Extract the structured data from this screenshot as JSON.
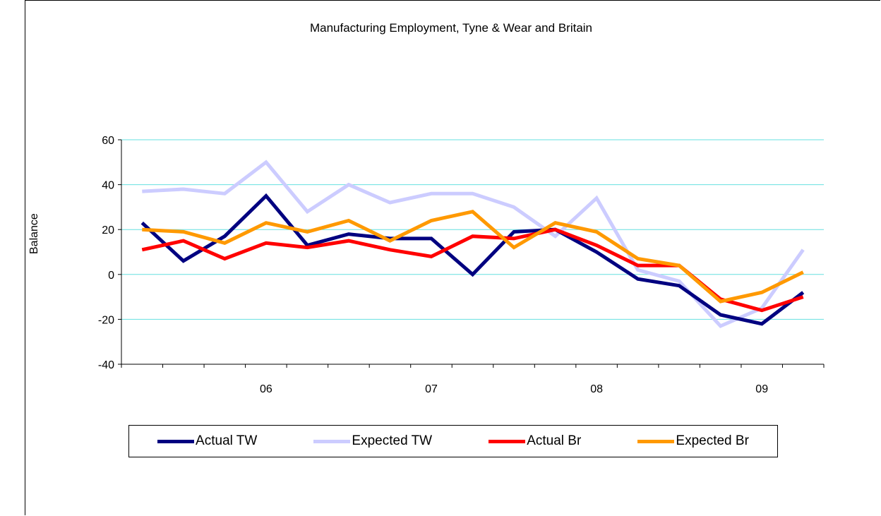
{
  "chart_data": {
    "type": "line",
    "title": "Manufacturing Employment,  Tyne & Wear and Britain",
    "ylabel": "Balance",
    "xlabel": "",
    "ylim": [
      -40,
      60
    ],
    "yticks": [
      60,
      40,
      20,
      0,
      -20,
      -40
    ],
    "xtick_labels": [
      "06",
      "07",
      "08",
      "09"
    ],
    "grid": "horizontal",
    "legend_position": "bottom",
    "series": [
      {
        "name": "Actual TW",
        "color": "#000080",
        "values": [
          23,
          6,
          17,
          35,
          13,
          18,
          16,
          16,
          0,
          19,
          20,
          10,
          -2,
          -5,
          -18,
          -22,
          -8
        ]
      },
      {
        "name": "Expected TW",
        "color": "#CCCCFF",
        "values": [
          37,
          38,
          36,
          50,
          28,
          40,
          32,
          36,
          36,
          30,
          17,
          34,
          2,
          -3,
          -23,
          -15,
          11
        ]
      },
      {
        "name": "Actual Br",
        "color": "#FF0000",
        "values": [
          11,
          15,
          7,
          14,
          12,
          15,
          11,
          8,
          17,
          16,
          20,
          13,
          4,
          4,
          -11,
          -16,
          -10
        ]
      },
      {
        "name": "Expected Br",
        "color": "#FF9900",
        "values": [
          20,
          19,
          14,
          23,
          19,
          24,
          15,
          24,
          28,
          12,
          23,
          19,
          7,
          4,
          -12,
          -8,
          1
        ]
      }
    ]
  }
}
